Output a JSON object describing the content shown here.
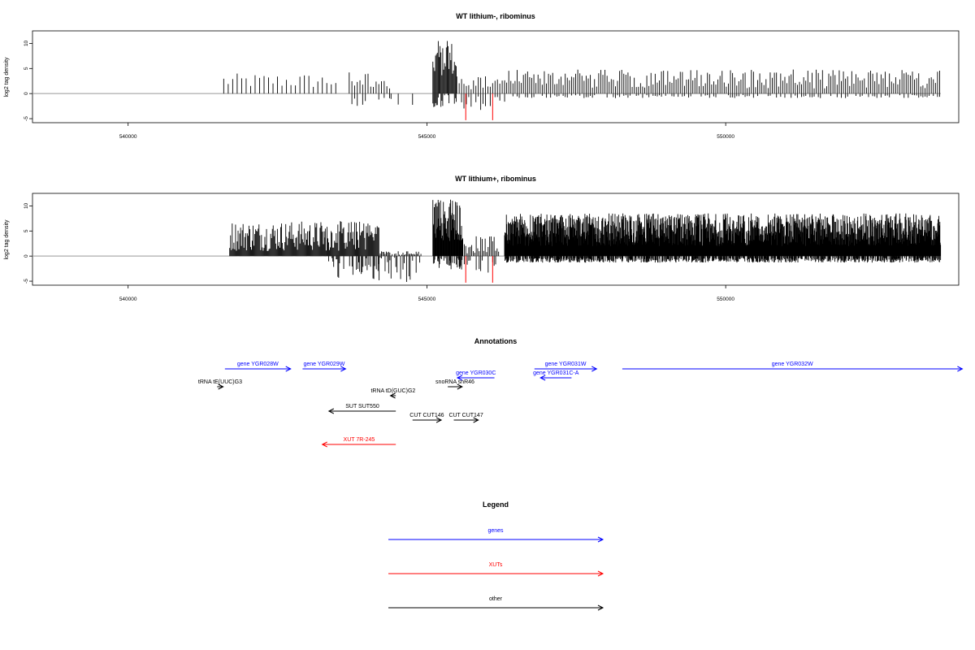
{
  "chart_data": [
    {
      "type": "bar",
      "title": "WT lithium-, ribominus",
      "ylabel": "log2 tag density",
      "xlabel": "",
      "xlim": [
        538400,
        553900
      ],
      "ylim": [
        -5.8,
        12.5
      ],
      "x_ticks": [
        540000,
        545000,
        550000
      ],
      "x_tick_labels": [
        "540000",
        "545000",
        "550000"
      ],
      "y_ticks": [
        -5,
        0,
        5,
        10
      ],
      "y_tick_labels": [
        "-5",
        "0",
        "5",
        "10"
      ],
      "baseline_range": [
        538400,
        553600
      ],
      "density_segments": [
        {
          "from": 541600,
          "to": 543500,
          "step": 75,
          "pos_min": 1.0,
          "pos_max": 4.0,
          "neg": 0
        },
        {
          "from": 543700,
          "to": 544400,
          "step": 45,
          "pos_min": 1.0,
          "pos_max": 4.5,
          "neg": 2.2
        },
        {
          "from": 544400,
          "to": 544800,
          "step": 60,
          "pos_min": 0,
          "pos_max": 0,
          "neg": 3.5
        },
        {
          "from": 545100,
          "to": 545500,
          "step": 15,
          "pos_min": 3.0,
          "pos_max": 10.5,
          "neg": 2.5
        },
        {
          "from": 545500,
          "to": 546300,
          "step": 40,
          "pos_min": 0.5,
          "pos_max": 3.5,
          "neg": 3.0
        },
        {
          "from": 546300,
          "to": 553600,
          "step": 35,
          "pos_min": 1.0,
          "pos_max": 4.8,
          "neg": 0.6
        }
      ],
      "red_marks": [
        545650,
        546100
      ]
    },
    {
      "type": "bar",
      "title": "WT lithium+, ribominus",
      "ylabel": "log2 tag density",
      "xlabel": "",
      "xlim": [
        538400,
        553900
      ],
      "ylim": [
        -5.8,
        12.5
      ],
      "x_ticks": [
        540000,
        545000,
        550000
      ],
      "x_tick_labels": [
        "540000",
        "545000",
        "550000"
      ],
      "y_ticks": [
        -5,
        0,
        5,
        10
      ],
      "y_tick_labels": [
        "-5",
        "0",
        "5",
        "10"
      ],
      "baseline_range": [
        538400,
        553600
      ],
      "density_segments": [
        {
          "from": 541700,
          "to": 543300,
          "step": 14,
          "pos_min": 1.0,
          "pos_max": 7.0,
          "neg": 0
        },
        {
          "from": 543300,
          "to": 544200,
          "step": 14,
          "pos_min": 1.0,
          "pos_max": 7.0,
          "neg": 4.5
        },
        {
          "from": 544200,
          "to": 544900,
          "step": 20,
          "pos_min": 0,
          "pos_max": 1.0,
          "neg": 5.0
        },
        {
          "from": 545100,
          "to": 545600,
          "step": 8,
          "pos_min": 3.0,
          "pos_max": 11.5,
          "neg": 2.5
        },
        {
          "from": 545600,
          "to": 546200,
          "step": 25,
          "pos_min": 0.5,
          "pos_max": 4.0,
          "neg": 3.0
        },
        {
          "from": 546300,
          "to": 553600,
          "step": 6,
          "pos_min": 2.0,
          "pos_max": 8.5,
          "neg": 1.0
        }
      ],
      "red_marks": [
        545650,
        546100
      ]
    }
  ],
  "annotations": {
    "title": "Annotations",
    "colors": {
      "gene": "#0000ff",
      "xut": "#ff0000",
      "other": "#000000"
    },
    "features": [
      {
        "label": "gene YGR028W",
        "kind": "gene",
        "start": 541620,
        "end": 542720,
        "strand": "+",
        "row": 0
      },
      {
        "label": "gene YGR029W",
        "kind": "gene",
        "start": 542920,
        "end": 543640,
        "strand": "+",
        "row": 0
      },
      {
        "label": "gene YGR030C",
        "kind": "gene",
        "start": 545510,
        "end": 546130,
        "strand": "-",
        "row": 1
      },
      {
        "label": "gene YGR031W",
        "kind": "gene",
        "start": 546800,
        "end": 547840,
        "strand": "+",
        "row": 0
      },
      {
        "label": "gene YGR031C-A",
        "kind": "gene",
        "start": 546900,
        "end": 547420,
        "strand": "-",
        "row": 1
      },
      {
        "label": "gene YGR032W",
        "kind": "gene",
        "start": 548270,
        "end": 553960,
        "strand": "+",
        "row": 0
      },
      {
        "label": "tRNA tE(UUC)G3",
        "kind": "other",
        "start": 541490,
        "end": 541590,
        "strand": "+",
        "row": 2
      },
      {
        "label": "snoRNA snR46",
        "kind": "other",
        "start": 545350,
        "end": 545590,
        "strand": "+",
        "row": 2
      },
      {
        "label": "tRNA tD(GUC)G2",
        "kind": "other",
        "start": 544390,
        "end": 544480,
        "strand": "-",
        "row": 3
      },
      {
        "label": "SUT SUT550",
        "kind": "other",
        "start": 543360,
        "end": 544480,
        "strand": "-",
        "row": 4
      },
      {
        "label": "CUT CUT146",
        "kind": "other",
        "start": 544760,
        "end": 545240,
        "strand": "+",
        "row": 5
      },
      {
        "label": "CUT CUT147",
        "kind": "other",
        "start": 545450,
        "end": 545860,
        "strand": "+",
        "row": 5
      },
      {
        "label": "XUT 7R-245",
        "kind": "xut",
        "start": 543250,
        "end": 544480,
        "strand": "-",
        "row": 6
      }
    ]
  },
  "legend": {
    "title": "Legend",
    "items": [
      {
        "label": "genes",
        "kind": "gene"
      },
      {
        "label": "XUTs",
        "kind": "xut"
      },
      {
        "label": "other",
        "kind": "other"
      }
    ]
  }
}
